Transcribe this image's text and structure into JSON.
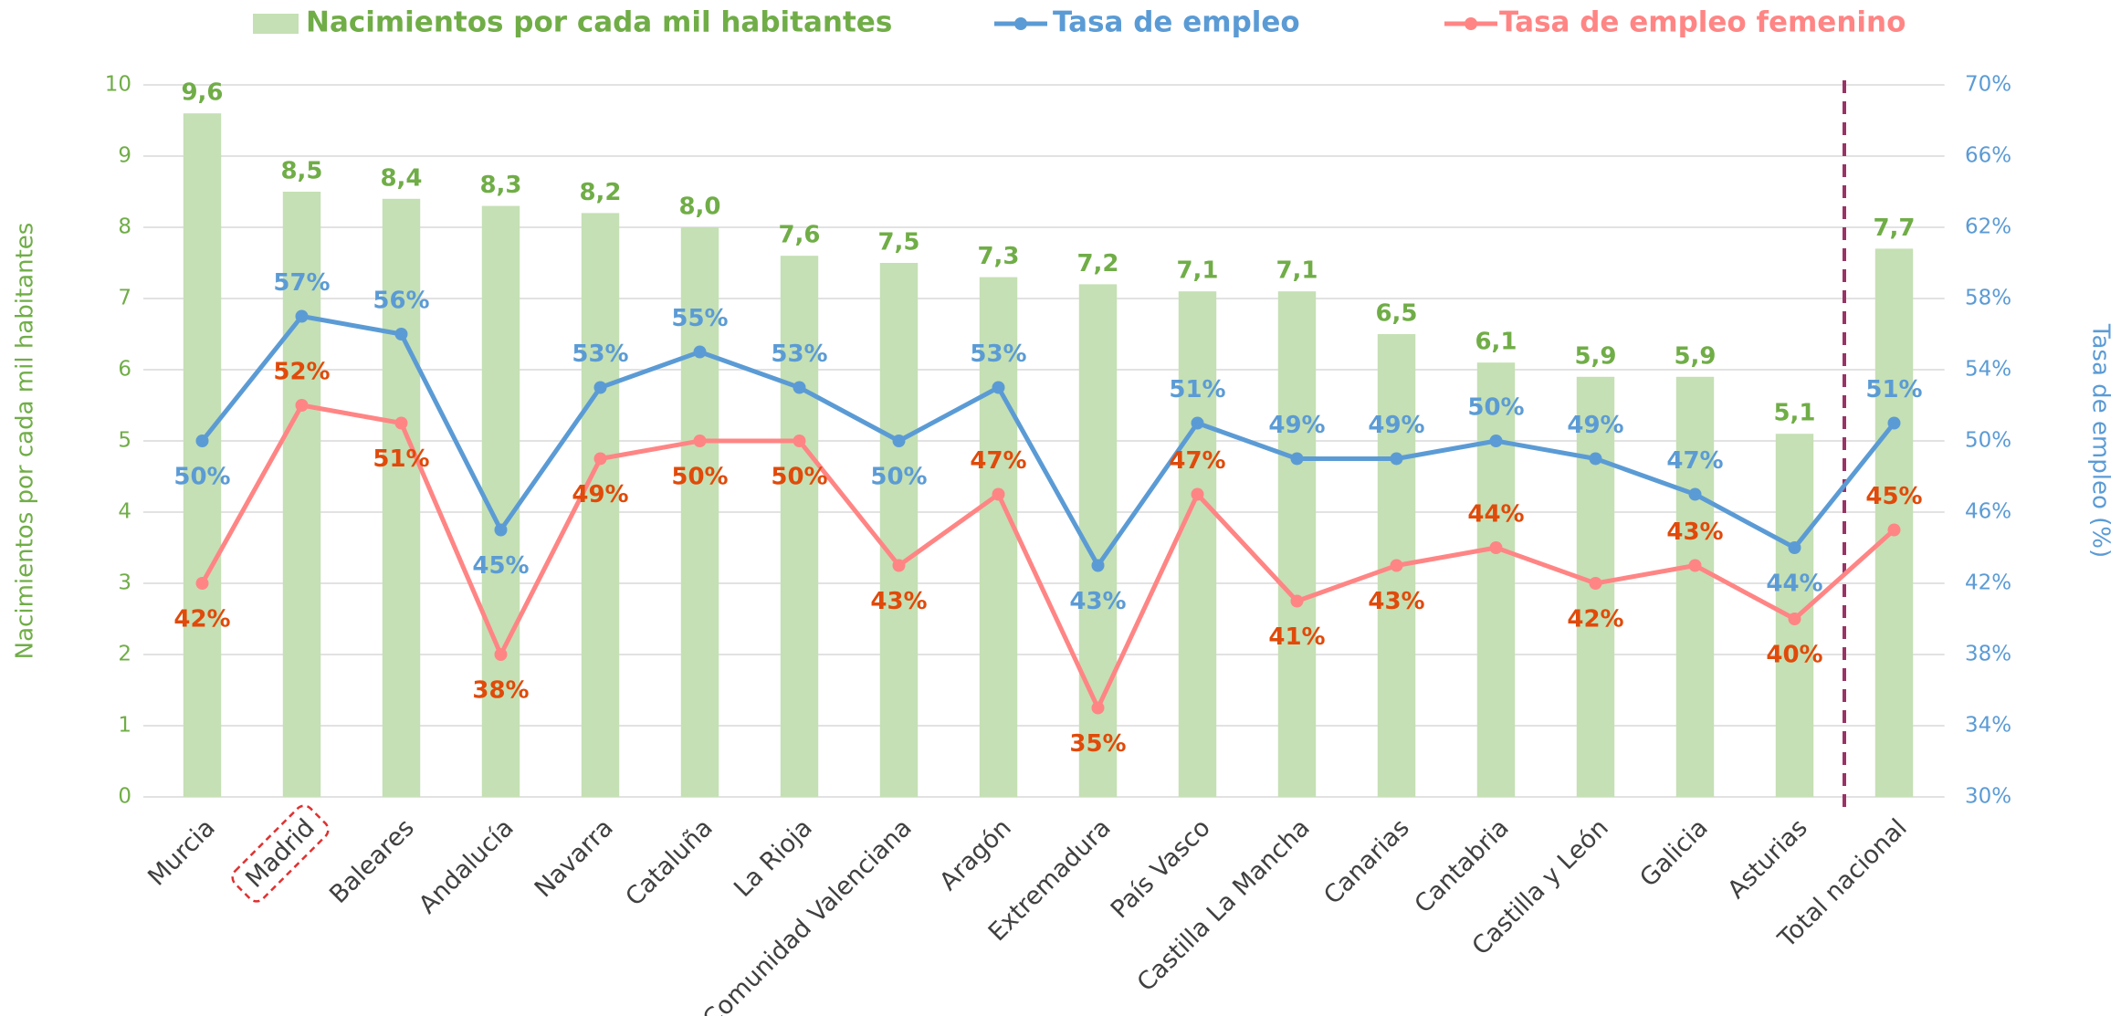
{
  "chart_data": {
    "type": "bar_line",
    "categories": [
      "Murcia",
      "Madrid",
      "Baleares",
      "Andalucía",
      "Navarra",
      "Cataluña",
      "La Rioja",
      "Comunidad Valenciana",
      "Aragón",
      "Extremadura",
      "País Vasco",
      "Castilla La Mancha",
      "Canarias",
      "Cantabria",
      "Castilla y León",
      "Galicia",
      "Asturias",
      "Total nacional"
    ],
    "series": [
      {
        "name": "Nacimientos por cada mil habitantes",
        "color": "#c5e0b4",
        "label_color": "#70ad47",
        "axis": "y",
        "values": [
          9.6,
          8.5,
          8.4,
          8.3,
          8.2,
          8.0,
          7.6,
          7.5,
          7.3,
          7.2,
          7.1,
          7.1,
          6.5,
          6.1,
          5.9,
          5.9,
          5.1,
          7.7
        ],
        "value_labels": [
          "9,6",
          "8,5",
          "8,4",
          "8,3",
          "8,2",
          "8,0",
          "7,6",
          "7,5",
          "7,3",
          "7,2",
          "7,1",
          "7,1",
          "6,5",
          "6,1",
          "5,9",
          "5,9",
          "5,1",
          "7,7"
        ]
      },
      {
        "name": "Tasa de empleo",
        "color": "#5b9bd5",
        "label_color": "#5b9bd5",
        "axis": "y2",
        "values": [
          50,
          57,
          56,
          45,
          53,
          55,
          53,
          50,
          53,
          43,
          51,
          49,
          49,
          50,
          49,
          47,
          44,
          51
        ],
        "value_labels": [
          "50%",
          "57%",
          "56%",
          "45%",
          "53%",
          "55%",
          "53%",
          "50%",
          "53%",
          "43%",
          "51%",
          "49%",
          "49%",
          "50%",
          "49%",
          "47%",
          "44%",
          "51%"
        ]
      },
      {
        "name": "Tasa de empleo femenino",
        "color": "#ff8585",
        "label_color": "#e04a0a",
        "axis": "y2",
        "values": [
          42,
          52,
          51,
          38,
          49,
          50,
          50,
          43,
          47,
          35,
          47,
          41,
          43,
          44,
          42,
          43,
          40,
          45
        ],
        "value_labels": [
          "42%",
          "52%",
          "51%",
          "38%",
          "49%",
          "50%",
          "50%",
          "43%",
          "47%",
          "35%",
          "47%",
          "41%",
          "43%",
          "44%",
          "42%",
          "43%",
          "40%",
          "45%"
        ]
      }
    ],
    "y_label": "Nacimientos por cada mil habitantes",
    "y2_label": "Tasa de empleo (%)",
    "ylim": [
      0,
      10
    ],
    "yticks": [
      0,
      1,
      2,
      3,
      4,
      5,
      6,
      7,
      8,
      9,
      10
    ],
    "y2lim": [
      30,
      70
    ],
    "y2ticks": [
      {
        "value": 30,
        "label": "30%"
      },
      {
        "value": 34,
        "label": "34%"
      },
      {
        "value": 38,
        "label": "38%"
      },
      {
        "value": 42,
        "label": "42%"
      },
      {
        "value": 46,
        "label": "46%"
      },
      {
        "value": 50,
        "label": "50%"
      },
      {
        "value": 54,
        "label": "54%"
      },
      {
        "value": 58,
        "label": "58%"
      },
      {
        "value": 62,
        "label": "62%"
      },
      {
        "value": 66,
        "label": "66%"
      },
      {
        "value": 70,
        "label": "70%"
      }
    ],
    "grid": true,
    "legend": "top"
  }
}
